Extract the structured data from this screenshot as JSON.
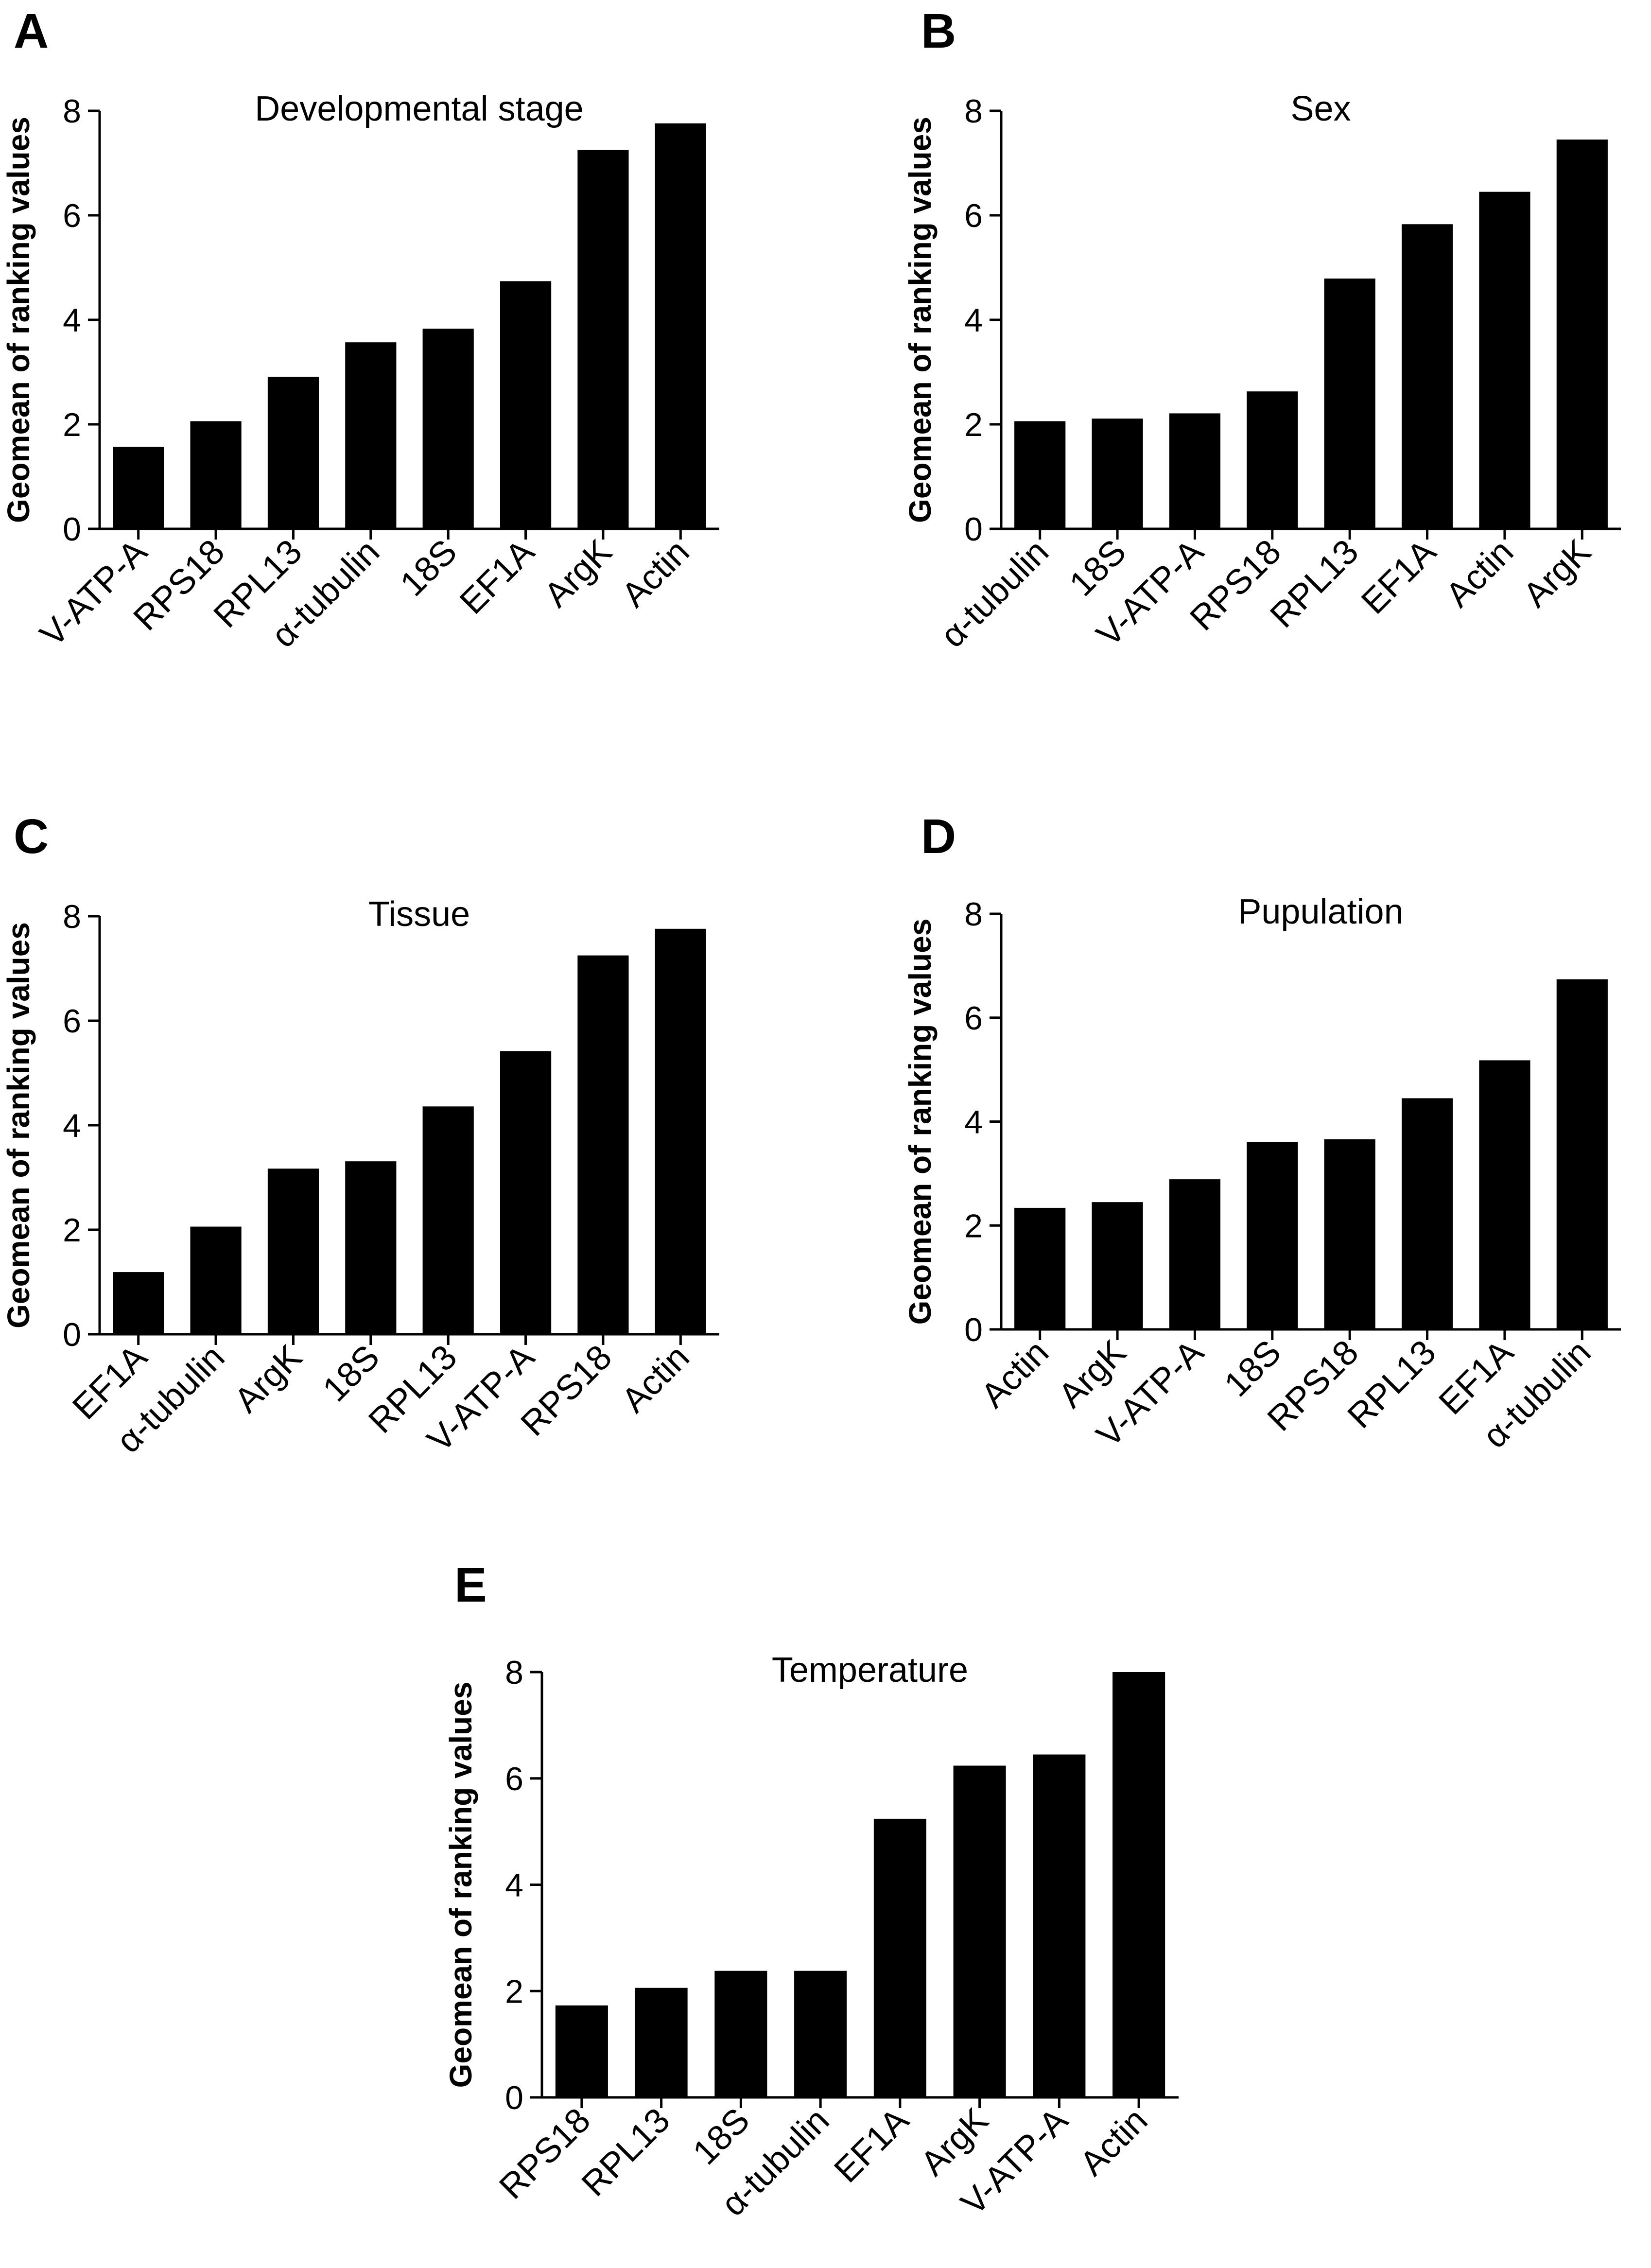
{
  "chart_data": [
    {
      "panel": "A",
      "type": "bar",
      "title": "Developmental stage",
      "xlabel": "",
      "ylabel": "Geomean of ranking values",
      "ylim": [
        0,
        8
      ],
      "yticks": [
        "0",
        "2",
        "4",
        "6",
        "8"
      ],
      "categories": [
        "V-ATP-A",
        "RPS18",
        "RPL13",
        "α-tubulin",
        "18S",
        "EF1A",
        "ArgK",
        "Actin"
      ],
      "values": [
        1.57,
        2.06,
        2.91,
        3.57,
        3.83,
        4.74,
        7.25,
        7.76
      ]
    },
    {
      "panel": "B",
      "type": "bar",
      "title": "Sex",
      "xlabel": "",
      "ylabel": "Geomean of ranking values",
      "ylim": [
        0,
        8
      ],
      "yticks": [
        "0",
        "2",
        "4",
        "6",
        "8"
      ],
      "categories": [
        "α-tubulin",
        "18S",
        "V-ATP-A",
        "RPS18",
        "RPL13",
        "EF1A",
        "Actin",
        "ArgK"
      ],
      "values": [
        2.06,
        2.11,
        2.21,
        2.63,
        4.79,
        5.83,
        6.45,
        7.45
      ]
    },
    {
      "panel": "C",
      "type": "bar",
      "title": "Tissue",
      "xlabel": "",
      "ylabel": "Geomean of ranking values",
      "ylim": [
        0,
        8
      ],
      "yticks": [
        "0",
        "2",
        "4",
        "6",
        "8"
      ],
      "categories": [
        "EF1A",
        "α-tubulin",
        "ArgK",
        "18S",
        "RPL13",
        "V-ATP-A",
        "RPS18",
        "Actin"
      ],
      "values": [
        1.19,
        2.06,
        3.17,
        3.31,
        4.36,
        5.42,
        7.25,
        7.76
      ]
    },
    {
      "panel": "D",
      "type": "bar",
      "title": "Pupulation",
      "xlabel": "",
      "ylabel": "Geomean of ranking values",
      "ylim": [
        0,
        8
      ],
      "yticks": [
        "0",
        "2",
        "4",
        "6",
        "8"
      ],
      "categories": [
        "Actin",
        "ArgK",
        "V-ATP-A",
        "18S",
        "RPS18",
        "RPL13",
        "EF1A",
        "α-tubulin"
      ],
      "values": [
        2.34,
        2.45,
        2.89,
        3.61,
        3.66,
        4.45,
        5.18,
        6.74
      ]
    },
    {
      "panel": "E",
      "type": "bar",
      "title": "Temperature",
      "xlabel": "",
      "ylabel": "Geomean of ranking values",
      "ylim": [
        0,
        8
      ],
      "yticks": [
        "0",
        "2",
        "4",
        "6",
        "8"
      ],
      "categories": [
        "RPS18",
        "RPL13",
        "18S",
        "α-tubulin",
        "EF1A",
        "ArgK",
        "V-ATP-A",
        "Actin"
      ],
      "values": [
        1.73,
        2.06,
        2.38,
        2.38,
        5.24,
        6.24,
        6.45,
        8.0
      ]
    }
  ],
  "colors": {
    "bar": "#000000",
    "axis": "#000000"
  }
}
